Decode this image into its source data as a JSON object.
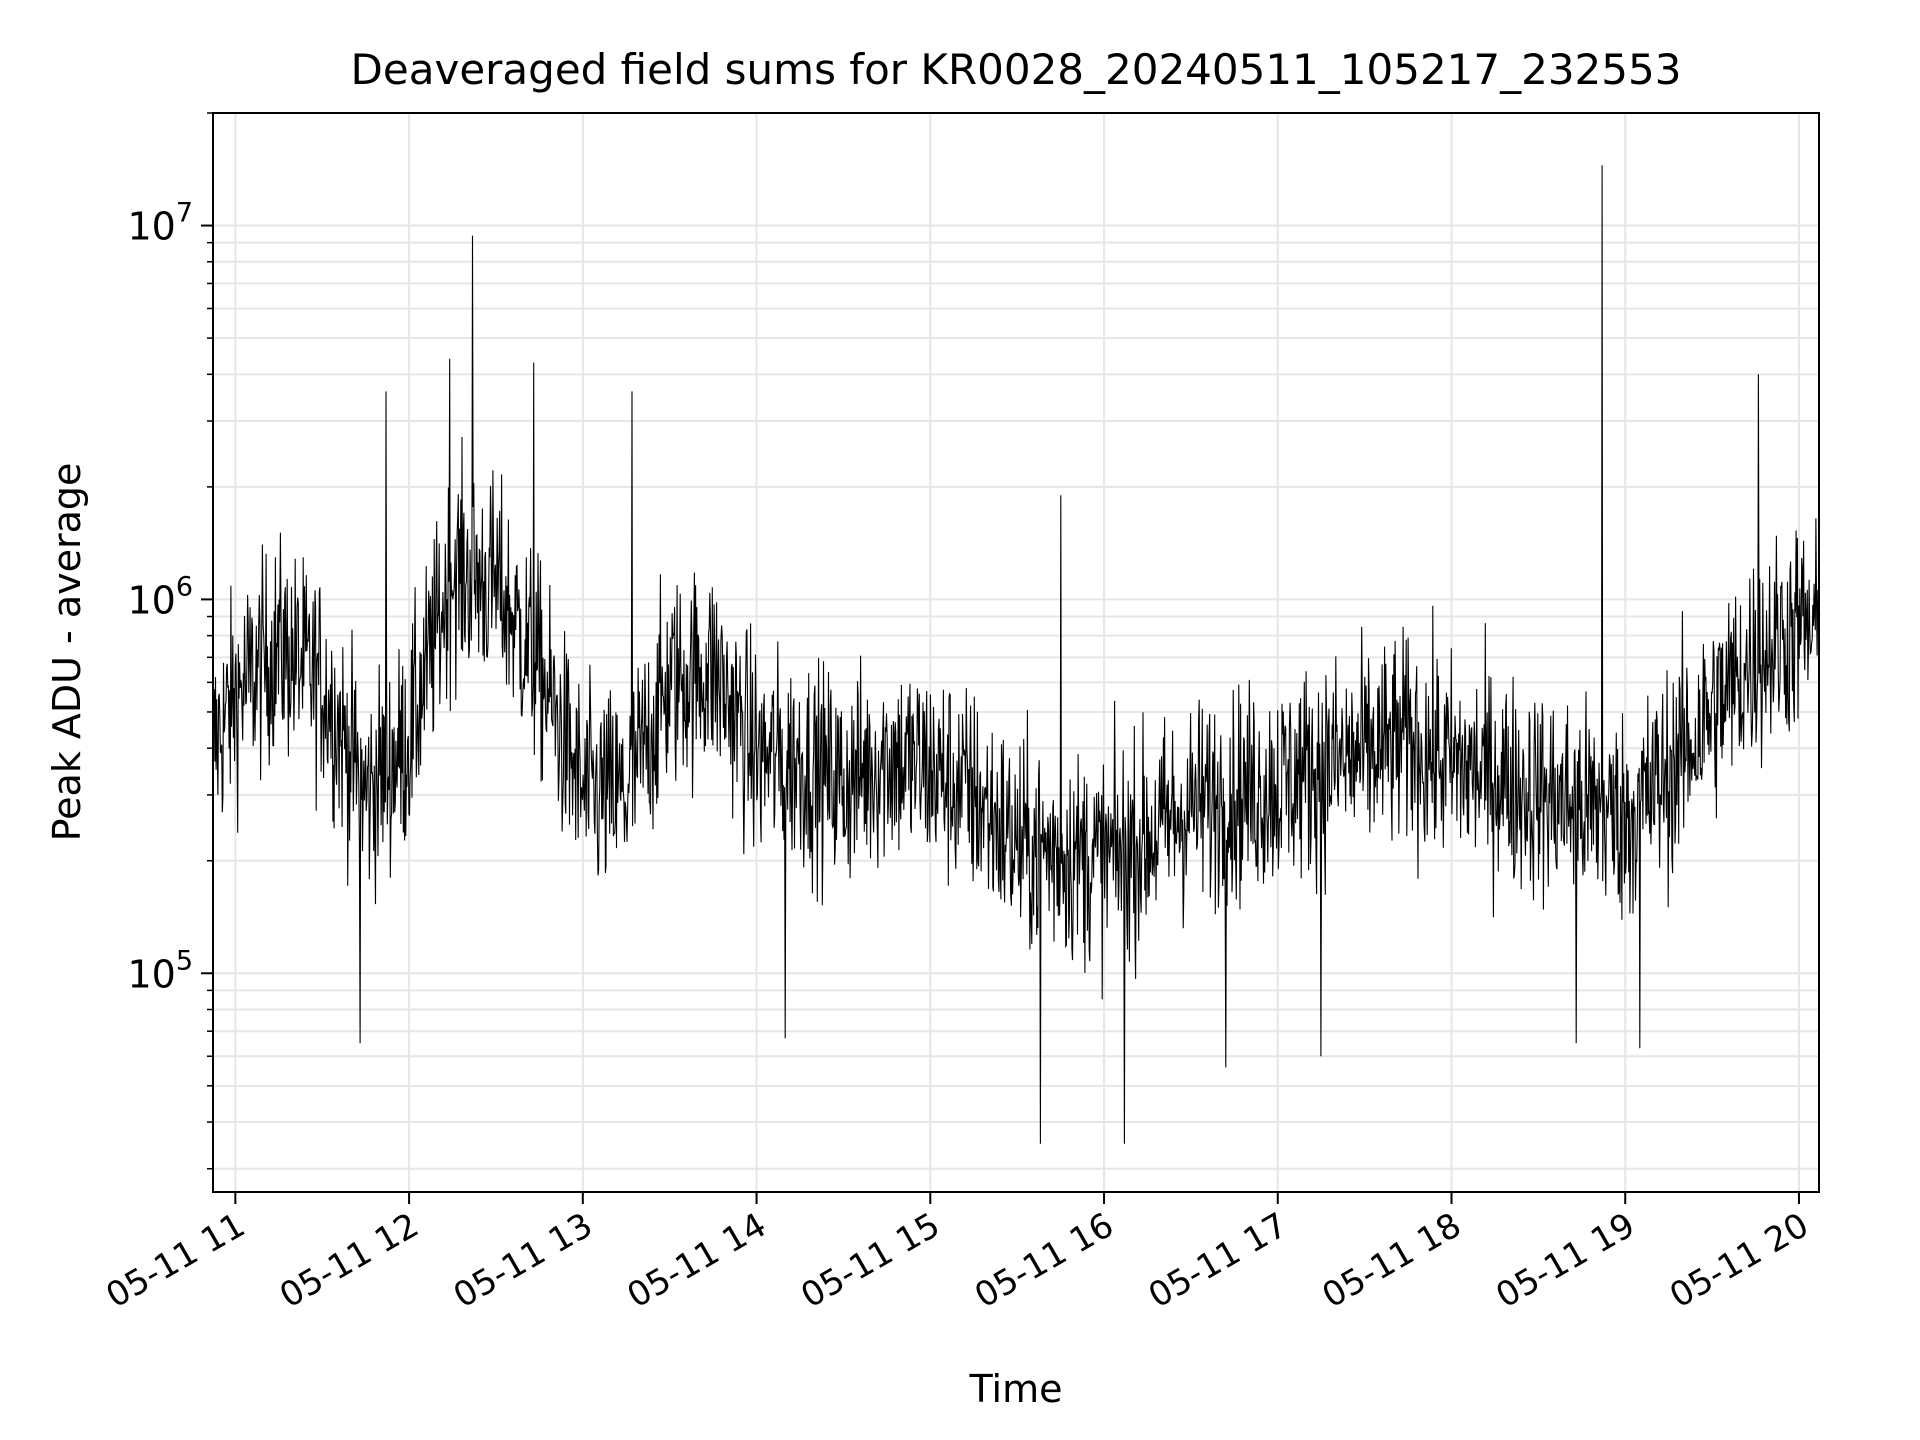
{
  "chart_data": {
    "type": "line",
    "title": "Deaveraged field sums for KR0028_20240511_105217_232553",
    "xlabel": "Time",
    "ylabel": "Peak ADU - average",
    "yscale": "log",
    "ylim": [
      26000,
      20000000
    ],
    "xlim": [
      "2024-05-11T10:52:17",
      "2024-05-11T20:06:55"
    ],
    "grid": true,
    "x_tick_labels": [
      "05-11 11",
      "05-11 12",
      "05-11 13",
      "05-11 14",
      "05-11 15",
      "05-11 16",
      "05-11 17",
      "05-11 18",
      "05-11 19",
      "05-11 20"
    ],
    "x_tick_values": [
      "2024-05-11T11:00",
      "2024-05-11T12:00",
      "2024-05-11T13:00",
      "2024-05-11T14:00",
      "2024-05-11T15:00",
      "2024-05-11T16:00",
      "2024-05-11T17:00",
      "2024-05-11T18:00",
      "2024-05-11T19:00",
      "2024-05-11T20:00"
    ],
    "y_tick_values": [
      100000,
      1000000,
      10000000
    ],
    "y_tick_exponents": [
      "5",
      "6",
      "7"
    ],
    "y_tick_base": "10",
    "series": [
      {
        "color": "#000000",
        "baseline_hours": [
          10.87,
          11.0,
          11.25,
          11.5,
          11.75,
          12.0,
          12.25,
          12.5,
          12.75,
          13.0,
          13.25,
          13.5,
          13.75,
          14.0,
          14.25,
          14.5,
          14.75,
          15.0,
          15.25,
          15.5,
          15.75,
          16.0,
          16.25,
          16.5,
          16.75,
          17.0,
          17.25,
          17.5,
          17.75,
          18.0,
          18.25,
          18.5,
          18.75,
          19.0,
          19.25,
          19.5,
          19.75,
          20.0,
          20.12
        ],
        "baseline_values": [
          400000,
          550000,
          750000,
          600000,
          300000,
          420000,
          1200000,
          1100000,
          650000,
          300000,
          300000,
          600000,
          650000,
          380000,
          370000,
          320000,
          380000,
          350000,
          300000,
          220000,
          210000,
          200000,
          230000,
          280000,
          300000,
          320000,
          360000,
          380000,
          420000,
          360000,
          340000,
          300000,
          280000,
          260000,
          340000,
          500000,
          700000,
          850000,
          800000
        ],
        "spikes": [
          {
            "x": "2024-05-11T12:22:00",
            "y": 9400000
          },
          {
            "x": "2024-05-11T18:52:00",
            "y": 14500000
          },
          {
            "x": "2024-05-11T15:45:00",
            "y": 1900000
          },
          {
            "x": "2024-05-11T19:46:00",
            "y": 4000000
          },
          {
            "x": "2024-05-11T12:14:00",
            "y": 4400000
          },
          {
            "x": "2024-05-11T12:43:00",
            "y": 4300000
          },
          {
            "x": "2024-05-11T13:17:00",
            "y": 3600000
          },
          {
            "x": "2024-05-11T11:52:00",
            "y": 3600000
          },
          {
            "x": "2024-05-11T15:38:00",
            "y": 35000
          },
          {
            "x": "2024-05-11T16:07:00",
            "y": 35000
          },
          {
            "x": "2024-05-11T11:43:00",
            "y": 65000
          },
          {
            "x": "2024-05-11T14:10:00",
            "y": 67000
          },
          {
            "x": "2024-05-11T16:42:00",
            "y": 56000
          },
          {
            "x": "2024-05-11T17:15:00",
            "y": 60000
          },
          {
            "x": "2024-05-11T18:43:00",
            "y": 65000
          },
          {
            "x": "2024-05-11T19:05:00",
            "y": 63000
          }
        ]
      }
    ]
  }
}
